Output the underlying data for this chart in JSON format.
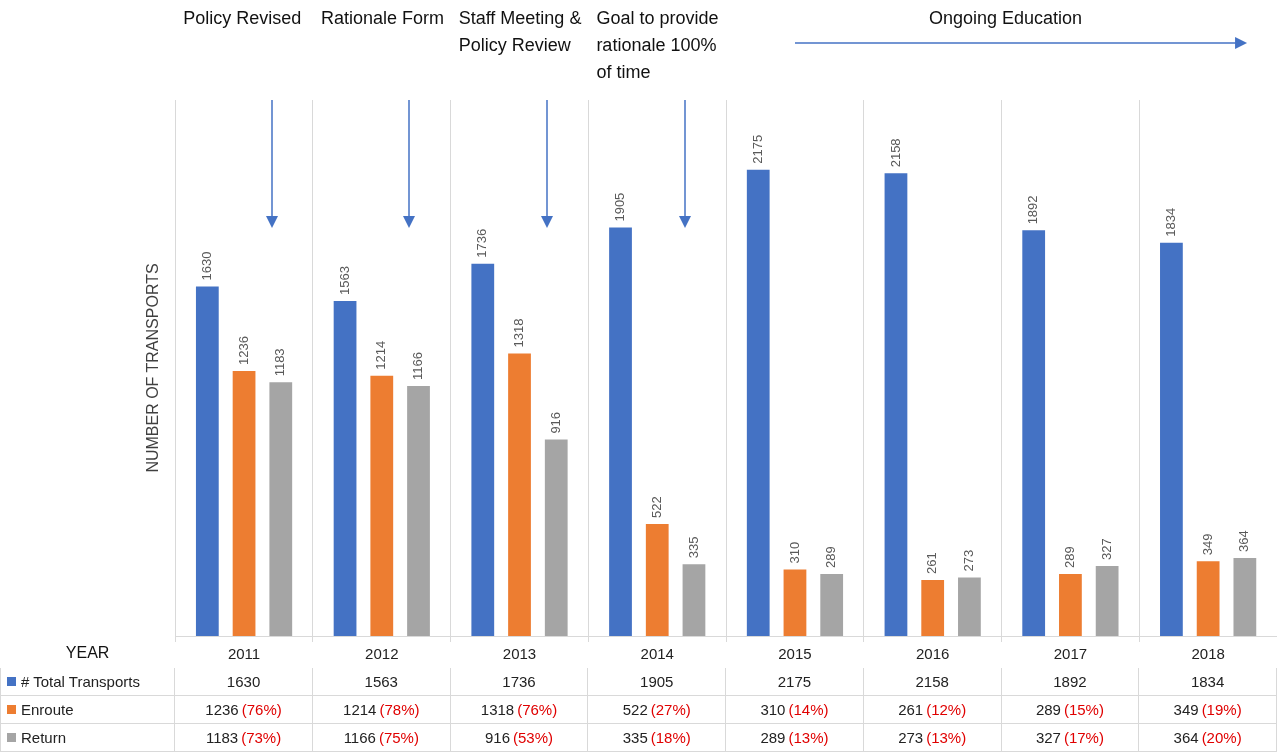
{
  "chart_data": [
    {
      "type": "bar",
      "categories": [
        "2011",
        "2012",
        "2013",
        "2014",
        "2015",
        "2016",
        "2017",
        "2018"
      ],
      "xlabel": "YEAR",
      "ylabel": "NUMBER OF TRANSPORTS",
      "series": [
        {
          "color": "#4472c4",
          "values": [
            1630,
            1563,
            1736,
            1905,
            2175,
            2158,
            1892,
            1834
          ],
          "value_labels": [
            "1630",
            "1563",
            "1736",
            "1905",
            "2175",
            "2158",
            "1892",
            "1834"
          ]
        },
        {
          "color": "#ed7d31",
          "values": [
            1236,
            1214,
            1318,
            522,
            310,
            261,
            289,
            349
          ],
          "value_labels": [
            "1236",
            "1214",
            "1318",
            "522",
            "310",
            "261",
            "289",
            "349"
          ]
        },
        {
          "color": "#a5a5a5",
          "values": [
            1183,
            1166,
            916,
            335,
            289,
            273,
            327,
            364
          ],
          "value_labels": [
            "1183",
            "1166",
            "916",
            "335",
            "289",
            "273",
            "327",
            "364"
          ]
        }
      ],
      "annotations": [
        "Policy Revised",
        "Rationale Form",
        "Staff Meeting & Policy Review",
        "Goal to provide rationale 100% of time",
        "Ongoing Education"
      ],
      "grid": "x"
    },
    {
      "type": "other",
      "annotations": [
        "# Total Transports",
        "1630",
        "1563",
        "1736",
        "1905",
        "2175",
        "2158",
        "1892",
        "1834",
        "Enroute",
        "1236 (76%)",
        "1214 (78%)",
        "1318 (76%)",
        "522 (27%)",
        "310 (14%)",
        "261 (12%)",
        "289 (15%)",
        "349 (19%)",
        "Return",
        "1183 (73%)",
        "1166 (75%)",
        "916 (53%)",
        "335 (18%)",
        "289 (13%)",
        "273 (13%)",
        "327 (17%)",
        "364 (20%)"
      ]
    }
  ]
}
